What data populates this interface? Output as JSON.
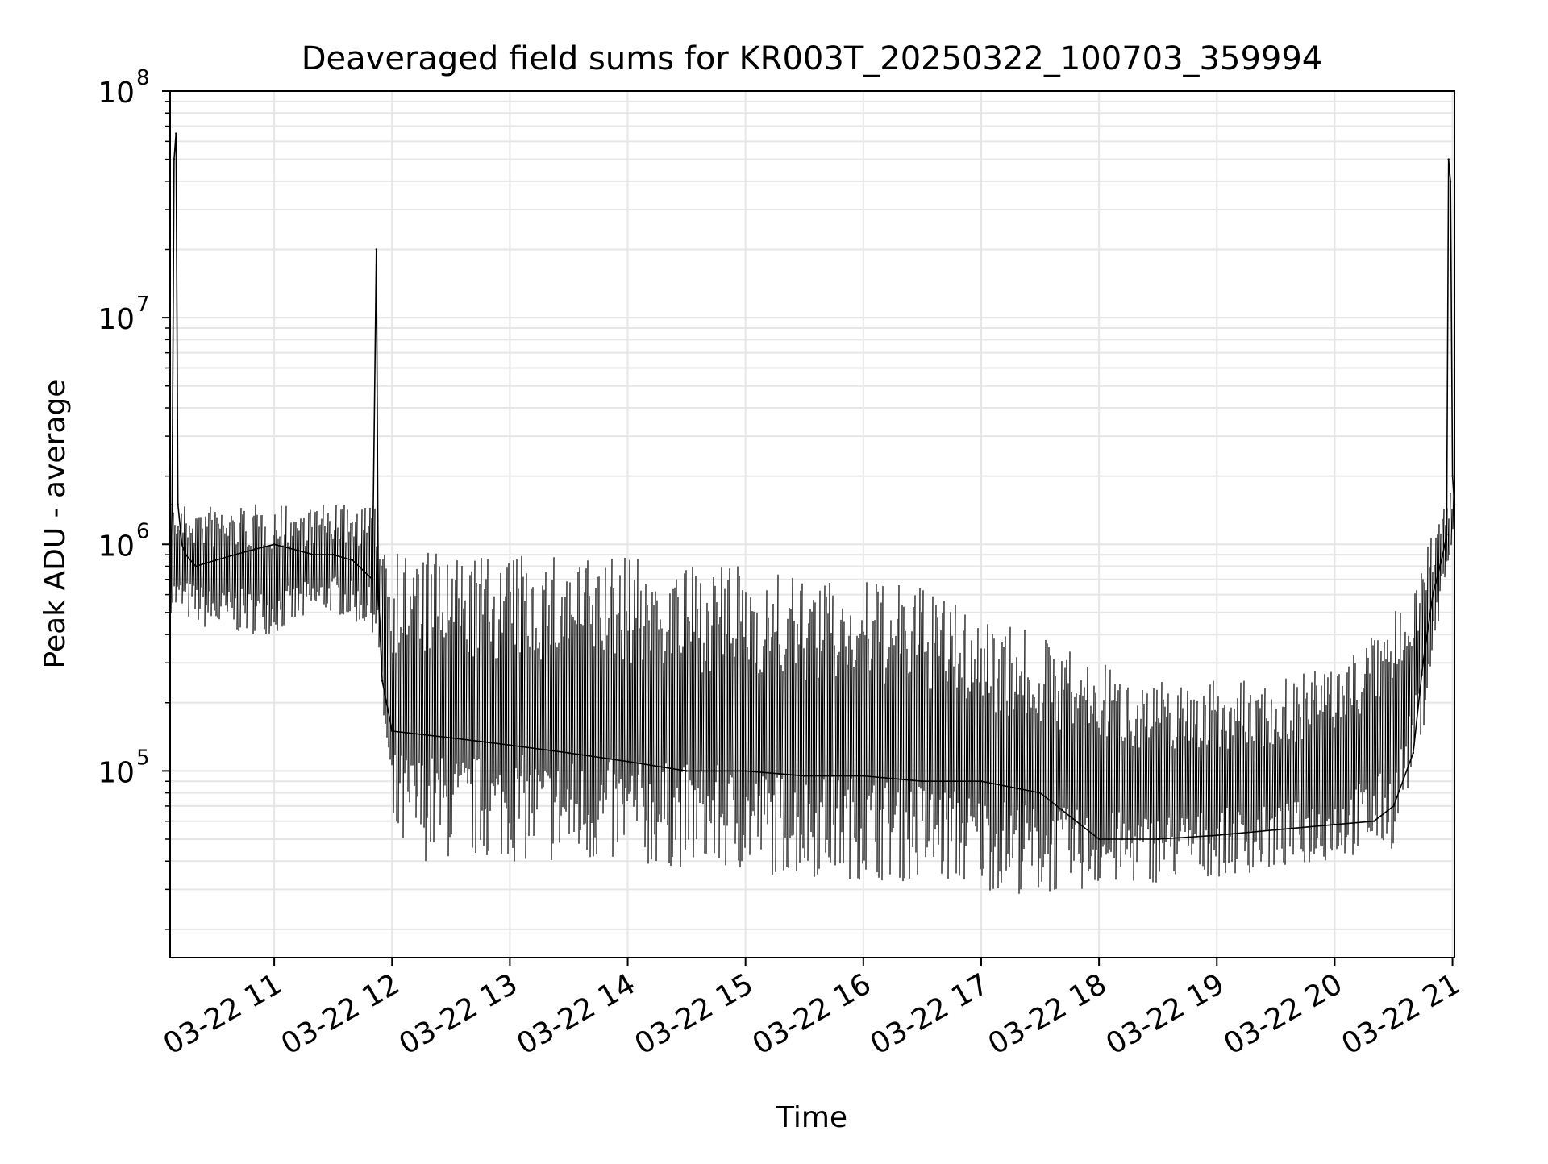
{
  "chart_data": {
    "type": "line",
    "title": "Deaveraged field sums for KR003T_20250322_100703_359994",
    "xlabel": "Time",
    "ylabel": "Peak ADU - average",
    "yscale": "log",
    "xlim": [
      "2025-03-22T10:07",
      "2025-03-22T21:01"
    ],
    "ylim": [
      15000,
      100000000
    ],
    "grid": true,
    "xticks": [
      "03-22 11",
      "03-22 12",
      "03-22 13",
      "03-22 14",
      "03-22 15",
      "03-22 16",
      "03-22 17",
      "03-22 18",
      "03-22 19",
      "03-22 20",
      "03-22 21"
    ],
    "xtick_times": [
      "2025-03-22T11:00",
      "2025-03-22T12:00",
      "2025-03-22T13:00",
      "2025-03-22T14:00",
      "2025-03-22T15:00",
      "2025-03-22T16:00",
      "2025-03-22T17:00",
      "2025-03-22T18:00",
      "2025-03-22T19:00",
      "2025-03-22T20:00",
      "2025-03-22T21:00"
    ],
    "yticks": [
      {
        "value": 100000,
        "base": "10",
        "exp": "5"
      },
      {
        "value": 1000000,
        "base": "10",
        "exp": "6"
      },
      {
        "value": 10000000,
        "base": "10",
        "exp": "7"
      },
      {
        "value": 100000000,
        "base": "10",
        "exp": "8"
      }
    ],
    "line_color": "#000000",
    "grid_color": "#e6e6e6",
    "series": [
      {
        "x": [
          "2025-03-22T10:07",
          "2025-03-22T10:08",
          "2025-03-22T10:09",
          "2025-03-22T10:10",
          "2025-03-22T10:11",
          "2025-03-22T10:13",
          "2025-03-22T10:15",
          "2025-03-22T10:20",
          "2025-03-22T10:30",
          "2025-03-22T10:40",
          "2025-03-22T10:50",
          "2025-03-22T11:00",
          "2025-03-22T11:10",
          "2025-03-22T11:20",
          "2025-03-22T11:30",
          "2025-03-22T11:40",
          "2025-03-22T11:50",
          "2025-03-22T11:52",
          "2025-03-22T11:53",
          "2025-03-22T11:55",
          "2025-03-22T12:00",
          "2025-03-22T12:30",
          "2025-03-22T13:00",
          "2025-03-22T13:30",
          "2025-03-22T14:00",
          "2025-03-22T14:30",
          "2025-03-22T15:00",
          "2025-03-22T15:30",
          "2025-03-22T16:00",
          "2025-03-22T16:30",
          "2025-03-22T17:00",
          "2025-03-22T17:30",
          "2025-03-22T18:00",
          "2025-03-22T18:30",
          "2025-03-22T19:00",
          "2025-03-22T19:30",
          "2025-03-22T20:00",
          "2025-03-22T20:20",
          "2025-03-22T20:30",
          "2025-03-22T20:40",
          "2025-03-22T20:45",
          "2025-03-22T20:50",
          "2025-03-22T20:55",
          "2025-03-22T20:57",
          "2025-03-22T20:58",
          "2025-03-22T20:59",
          "2025-03-22T21:00",
          "2025-03-22T21:01"
        ],
        "y": [
          500000,
          1500000,
          50000000,
          65000000,
          1500000,
          1000000,
          900000,
          800000,
          850000,
          900000,
          950000,
          1000000,
          950000,
          900000,
          900000,
          850000,
          700000,
          20000000,
          600000,
          250000,
          150000,
          140000,
          130000,
          120000,
          110000,
          100000,
          100000,
          95000,
          95000,
          90000,
          90000,
          80000,
          50000,
          50000,
          52000,
          55000,
          58000,
          60000,
          70000,
          120000,
          300000,
          600000,
          900000,
          1100000,
          50000000,
          40000000,
          2000000,
          1500000
        ]
      }
    ],
    "envelope": {
      "x": [
        "2025-03-22T10:07",
        "2025-03-22T10:30",
        "2025-03-22T11:00",
        "2025-03-22T11:30",
        "2025-03-22T11:52",
        "2025-03-22T12:00",
        "2025-03-22T12:30",
        "2025-03-22T13:00",
        "2025-03-22T13:30",
        "2025-03-22T14:00",
        "2025-03-22T14:30",
        "2025-03-22T15:00",
        "2025-03-22T15:30",
        "2025-03-22T16:00",
        "2025-03-22T16:30",
        "2025-03-22T17:00",
        "2025-03-22T17:30",
        "2025-03-22T18:00",
        "2025-03-22T18:30",
        "2025-03-22T19:00",
        "2025-03-22T19:30",
        "2025-03-22T20:00",
        "2025-03-22T20:30",
        "2025-03-22T20:45",
        "2025-03-22T20:55",
        "2025-03-22T21:01"
      ],
      "upper": [
        1500000,
        1500000,
        1500000,
        1500000,
        1500000,
        1000000,
        900000,
        900000,
        900000,
        900000,
        800000,
        800000,
        700000,
        700000,
        650000,
        500000,
        400000,
        300000,
        250000,
        250000,
        250000,
        300000,
        500000,
        900000,
        1500000,
        2000000
      ],
      "lower": [
        500000,
        400000,
        400000,
        500000,
        400000,
        40000,
        40000,
        40000,
        38000,
        37000,
        37000,
        35000,
        34000,
        33000,
        32000,
        30000,
        28000,
        30000,
        32000,
        34000,
        36000,
        40000,
        45000,
        150000,
        600000,
        1000000
      ]
    }
  }
}
